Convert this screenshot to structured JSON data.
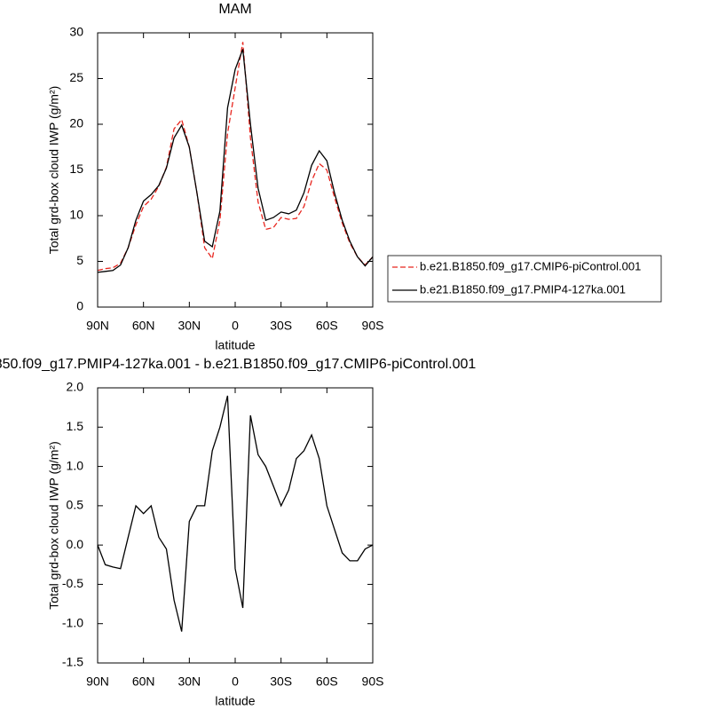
{
  "chart_data": [
    {
      "type": "line",
      "title": "MAM",
      "xlabel": "latitude",
      "ylabel": "Total grd-box cloud IWP (g/m²)",
      "x": [
        90,
        85,
        80,
        75,
        70,
        65,
        60,
        55,
        50,
        45,
        40,
        35,
        30,
        25,
        20,
        15,
        10,
        5,
        0,
        -5,
        -10,
        -15,
        -20,
        -25,
        -30,
        -35,
        -40,
        -45,
        -50,
        -55,
        -60,
        -65,
        -70,
        -75,
        -80,
        -85,
        -90
      ],
      "xlim": [
        90,
        -90
      ],
      "xticks": [
        {
          "value": 90,
          "label": "90N"
        },
        {
          "value": 60,
          "label": "60N"
        },
        {
          "value": 30,
          "label": "30N"
        },
        0,
        {
          "value": -30,
          "label": "30S"
        },
        {
          "value": -60,
          "label": "60S"
        },
        {
          "value": -90,
          "label": "90S"
        }
      ],
      "ylim": [
        0,
        30
      ],
      "yticks": [
        0,
        5,
        10,
        15,
        20,
        25,
        30
      ],
      "legend": "outside-right",
      "series": [
        {
          "name": "b.e21.B1850.f09_g17.CMIP6-piControl.001",
          "color": "#e8261f",
          "line_style": "dashed",
          "values": [
            4.0,
            4.2,
            4.3,
            4.8,
            6.5,
            9.0,
            11.0,
            11.8,
            13.2,
            15.3,
            19.5,
            20.5,
            17.5,
            12.5,
            6.5,
            5.3,
            9.5,
            19.0,
            24.0,
            29.0,
            18.5,
            11.5,
            8.5,
            8.7,
            9.8,
            9.6,
            9.7,
            11.0,
            13.8,
            15.7,
            15.0,
            12.0,
            9.2,
            7.0,
            5.5,
            4.6,
            5.5
          ]
        },
        {
          "name": "b.e21.B1850.f09_g17.PMIP4-127ka.001",
          "color": "#000000",
          "line_style": "solid",
          "values": [
            3.8,
            3.9,
            4.0,
            4.6,
            6.5,
            9.5,
            11.6,
            12.3,
            13.3,
            15.2,
            18.5,
            19.9,
            17.5,
            12.5,
            7.2,
            6.6,
            10.5,
            21.8,
            26.0,
            28.2,
            20.0,
            13.0,
            9.5,
            9.8,
            10.4,
            10.2,
            10.6,
            12.5,
            15.5,
            17.1,
            16.0,
            12.5,
            9.5,
            7.2,
            5.5,
            4.5,
            5.5
          ]
        }
      ]
    },
    {
      "type": "line",
      "title": "850.f09_g17.PMIP4-127ka.001 - b.e21.B1850.f09_g17.CMIP6-piControl.001",
      "xlabel": "latitude",
      "ylabel": "Total grd-box cloud IWP (g/m²)",
      "x": [
        90,
        85,
        80,
        75,
        70,
        65,
        60,
        55,
        50,
        45,
        40,
        35,
        30,
        25,
        20,
        15,
        10,
        5,
        0,
        -5,
        -10,
        -15,
        -20,
        -25,
        -30,
        -35,
        -40,
        -45,
        -50,
        -55,
        -60,
        -65,
        -70,
        -75,
        -80,
        -85,
        -90
      ],
      "xlim": [
        90,
        -90
      ],
      "xticks": [
        {
          "value": 90,
          "label": "90N"
        },
        {
          "value": 60,
          "label": "60N"
        },
        {
          "value": 30,
          "label": "30N"
        },
        0,
        {
          "value": -30,
          "label": "30S"
        },
        {
          "value": -60,
          "label": "60S"
        },
        {
          "value": -90,
          "label": "90S"
        }
      ],
      "ylim": [
        -1.5,
        2.0
      ],
      "yticks": [
        -1.5,
        {
          "value": -1,
          "label": "-1.0"
        },
        -0.5,
        {
          "value": 0,
          "label": "0.0"
        },
        0.5,
        {
          "value": 1,
          "label": "1.0"
        },
        1.5,
        {
          "value": 2,
          "label": "2.0"
        }
      ],
      "series": [
        {
          "color": "#000000",
          "line_style": "solid",
          "values": [
            0.0,
            -0.25,
            -0.28,
            -0.3,
            0.1,
            0.5,
            0.4,
            0.5,
            0.1,
            -0.05,
            -0.7,
            -1.1,
            0.3,
            0.5,
            0.5,
            1.2,
            1.5,
            1.9,
            -0.3,
            -0.8,
            1.65,
            1.15,
            1.0,
            0.75,
            0.5,
            0.7,
            1.1,
            1.2,
            1.4,
            1.1,
            0.5,
            0.2,
            -0.1,
            -0.2,
            -0.2,
            -0.05,
            0.0
          ]
        }
      ]
    }
  ]
}
